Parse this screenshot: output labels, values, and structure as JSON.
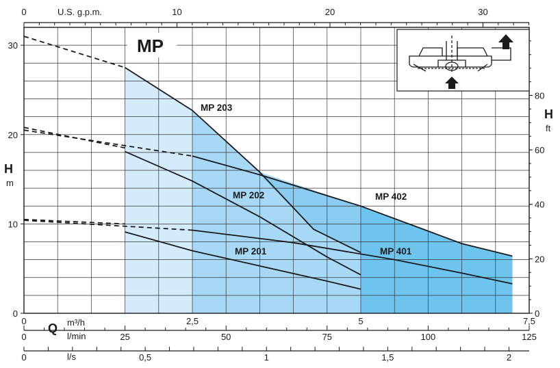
{
  "chart_data": {
    "type": "line",
    "title": "MP",
    "left_axis": {
      "symbol": "H",
      "unit": "m",
      "ticks": [
        "0",
        "10",
        "20",
        "30"
      ],
      "range": [
        0,
        32
      ]
    },
    "right_axis": {
      "symbol": "H",
      "unit": "ft",
      "ticks": [
        "0",
        "20",
        "40",
        "60",
        "80"
      ]
    },
    "top_axis": {
      "label": "U.S. g.p.m.",
      "ticks": [
        "0",
        "10",
        "20",
        "30"
      ]
    },
    "bottom_axes": {
      "flow_symbol": "Q",
      "m3h": {
        "unit": "m³/h",
        "ticks": [
          "0",
          "2,5",
          "5",
          "7,5"
        ],
        "range": [
          0,
          7.5
        ]
      },
      "lmin": {
        "unit": "l/min",
        "ticks": [
          "0",
          "25",
          "50",
          "75",
          "100",
          "125"
        ]
      },
      "ls": {
        "unit": "l/s",
        "ticks": [
          "0",
          "0,5",
          "1",
          "1,5",
          "2"
        ]
      }
    },
    "series": [
      {
        "name": "MP 201",
        "dashed": [
          [
            0,
            10.5
          ],
          [
            1.5,
            10.0
          ]
        ],
        "solid": [
          [
            1.5,
            9.1
          ],
          [
            2.5,
            7.0
          ],
          [
            3.5,
            5.3
          ],
          [
            4.5,
            3.6
          ],
          [
            5.0,
            2.7
          ]
        ]
      },
      {
        "name": "MP 202",
        "dashed": [
          [
            0,
            20.8
          ],
          [
            1.5,
            18.5
          ]
        ],
        "solid": [
          [
            1.5,
            18.1
          ],
          [
            2.5,
            14.8
          ],
          [
            3.5,
            10.8
          ],
          [
            4.5,
            6.3
          ],
          [
            5.0,
            4.3
          ]
        ]
      },
      {
        "name": "MP 203",
        "dashed": [
          [
            0,
            31.0
          ],
          [
            1.5,
            27.5
          ]
        ],
        "solid": [
          [
            1.5,
            27.5
          ],
          [
            2.5,
            22.7
          ],
          [
            3.5,
            15.8
          ],
          [
            4.3,
            9.4
          ],
          [
            5.0,
            6.8
          ]
        ]
      },
      {
        "name": "MP 401",
        "dashed": [
          [
            0,
            10.4
          ],
          [
            2.5,
            9.3
          ]
        ],
        "solid": [
          [
            2.5,
            9.3
          ],
          [
            4.0,
            7.9
          ],
          [
            5.5,
            6.0
          ],
          [
            6.5,
            4.5
          ],
          [
            7.25,
            3.3
          ]
        ]
      },
      {
        "name": "MP 402",
        "dashed": [
          [
            0,
            20.5
          ],
          [
            2.5,
            17.6
          ]
        ],
        "solid": [
          [
            2.5,
            17.6
          ],
          [
            3.5,
            15.5
          ],
          [
            5.0,
            12.0
          ],
          [
            6.5,
            7.8
          ],
          [
            7.25,
            6.4
          ]
        ]
      }
    ],
    "region_colors": [
      "#d3ebfa",
      "#a7d8f5",
      "#6cc4ef"
    ],
    "grid": true,
    "label_positions": {
      "MP 203": "upper-middle",
      "MP 202": "middle",
      "MP 201": "lower-middle",
      "MP 402": "right",
      "MP 401": "lower-right"
    }
  },
  "inset": {
    "icons": [
      "pump-cross-section-icon",
      "up-arrow-icon",
      "up-arrow-icon"
    ]
  }
}
